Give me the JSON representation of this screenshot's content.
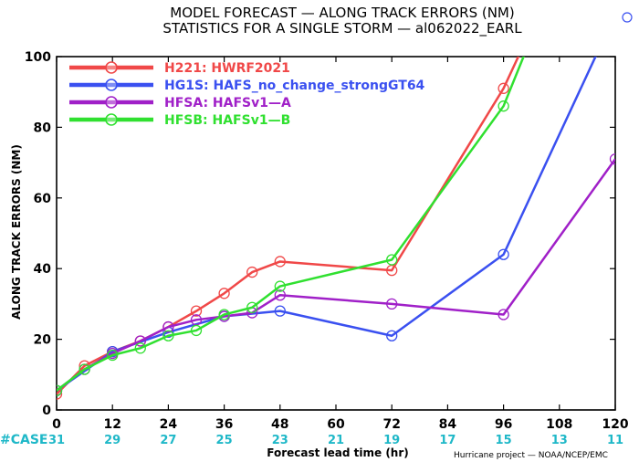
{
  "chart_data": {
    "type": "line",
    "title": "MODEL FORECAST — ALONG TRACK ERRORS (NM)",
    "subtitle": "STATISTICS FOR A SINGLE STORM — al062022_EARL",
    "xlabel": "Forecast lead time (hr)",
    "ylabel": "ALONG TRACK ERRORS (NM)",
    "xlim": [
      0,
      120
    ],
    "ylim": [
      0,
      100
    ],
    "x_ticks": [
      "0",
      "12",
      "24",
      "36",
      "48",
      "60",
      "72",
      "84",
      "96",
      "108",
      "120"
    ],
    "y_ticks": [
      "0",
      "20",
      "40",
      "60",
      "80",
      "100"
    ],
    "case_label": "#CASE",
    "case_counts": [
      "31",
      "29",
      "27",
      "25",
      "23",
      "21",
      "19",
      "17",
      "15",
      "13",
      "11"
    ],
    "credit": "Hurricane project — NOAA/NCEP/EMC",
    "legend_position": "top-left",
    "series": [
      {
        "name": "H221: HWRF2021",
        "color": "#f04848",
        "x": [
          0,
          6,
          12,
          18,
          24,
          30,
          36,
          42,
          48,
          72,
          96,
          108
        ],
        "y": [
          4.5,
          12.5,
          16.5,
          19.5,
          23.5,
          28,
          33,
          39,
          42,
          39.5,
          91,
          125
        ]
      },
      {
        "name": "HG1S: HAFS_no_change_strongGT64",
        "color": "#3a50f0",
        "x": [
          0,
          12,
          24,
          36,
          48,
          72,
          96,
          120
        ],
        "y": [
          5.5,
          16.5,
          22,
          26.5,
          28,
          21,
          44,
          112
        ]
      },
      {
        "name": "HFSA: HAFSv1—A",
        "color": "#a020c8",
        "x": [
          0,
          6,
          12,
          18,
          24,
          30,
          36,
          42,
          48,
          72,
          96,
          120
        ],
        "y": [
          5.5,
          11.5,
          16,
          19.5,
          23.5,
          25.5,
          26.5,
          27.5,
          32.5,
          30,
          27,
          71
        ]
      },
      {
        "name": "HFSB: HAFSv1—B",
        "color": "#30e030",
        "x": [
          0,
          6,
          12,
          18,
          24,
          30,
          36,
          42,
          48,
          72,
          96,
          108
        ],
        "y": [
          5.5,
          11.5,
          15.5,
          17.5,
          21,
          22.5,
          27,
          29,
          35,
          42.5,
          86,
          125
        ]
      }
    ]
  },
  "corner_marker_icon": "open-circle-icon"
}
